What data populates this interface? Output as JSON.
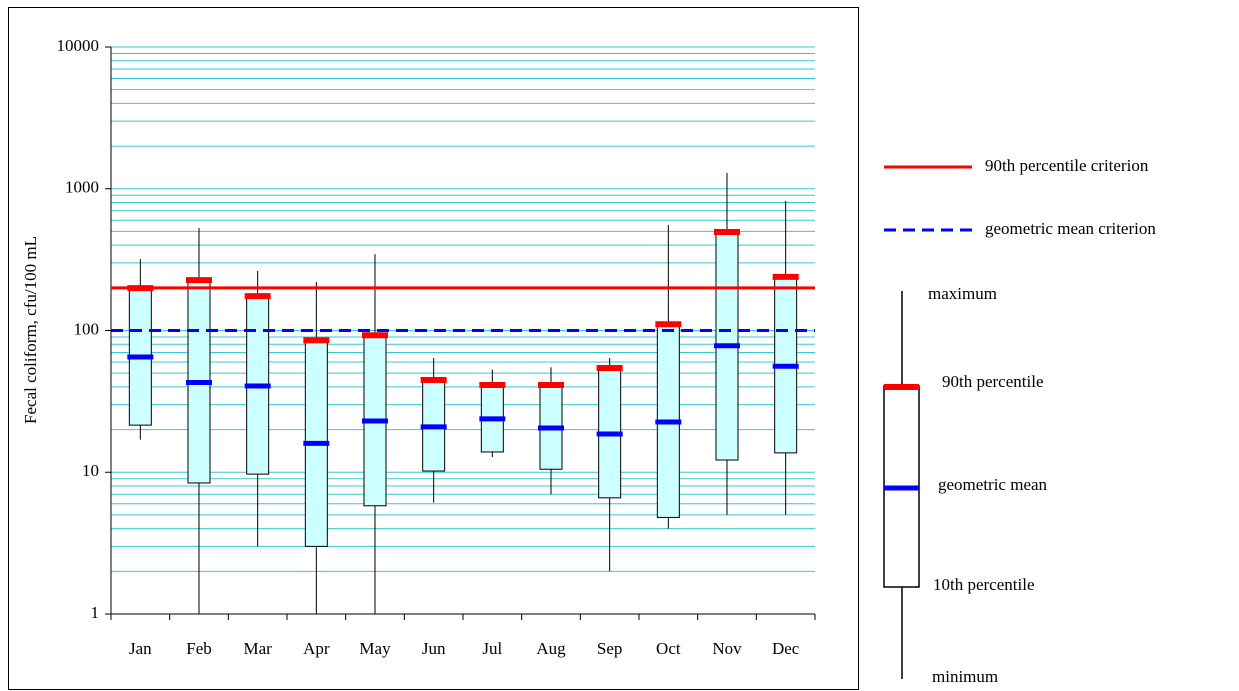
{
  "chart_data": {
    "type": "box",
    "y_label": "Fecal coliform, cfu/100 mL",
    "log_scale": true,
    "ylim": [
      1,
      10000
    ],
    "yticks": [
      1,
      10,
      100,
      1000,
      10000
    ],
    "grid": true,
    "minor_grid": true,
    "grid_color": "#33cccc",
    "box_color": "#ccffff",
    "p90_color": "#ff0000",
    "gmean_color": "#0000ff",
    "categories": [
      "Jan",
      "Feb",
      "Mar",
      "Apr",
      "May",
      "Jun",
      "Jul",
      "Aug",
      "Sep",
      "Oct",
      "Nov",
      "Dec"
    ],
    "max": [
      319,
      529,
      263,
      220,
      346,
      64,
      53,
      55,
      64,
      555,
      1291,
      820
    ],
    "p90": [
      196,
      223,
      172,
      84,
      91,
      44,
      40.6,
      40.6,
      53.5,
      109,
      487,
      235
    ],
    "gmean": [
      65,
      43,
      40.6,
      16,
      23,
      20.9,
      23.8,
      20.5,
      18.6,
      22.6,
      78,
      56
    ],
    "p10": [
      21.5,
      8.4,
      9.7,
      3.0,
      5.8,
      10.2,
      13.9,
      10.5,
      6.6,
      4.8,
      12.2,
      13.7
    ],
    "min": [
      17,
      1,
      3.0,
      1,
      1,
      6.1,
      12.8,
      7.0,
      2.0,
      4.0,
      5.0,
      5.0
    ],
    "reference_lines": [
      {
        "name": "90th percentile criterion",
        "value": 200,
        "color": "#ff0000",
        "style": "solid"
      },
      {
        "name": "geometric mean criterion",
        "value": 100,
        "color": "#0000ff",
        "style": "dashed"
      }
    ],
    "box_legend_labels": [
      "maximum",
      "90th percentile",
      "geometric mean",
      "10th percentile",
      "minimum"
    ]
  }
}
